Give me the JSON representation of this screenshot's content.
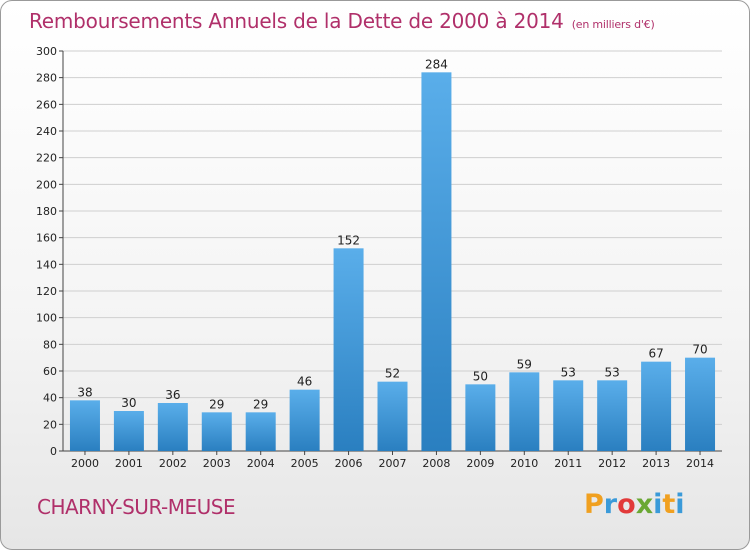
{
  "title": "Remboursements Annuels de la Dette de 2000 à 2014",
  "subtitle": "(en milliers d'€)",
  "commune": "CHARNY-SUR-MEUSE",
  "logo": {
    "letters": [
      "P",
      "r",
      "o",
      "x",
      "i",
      "t",
      "i"
    ],
    "colors": [
      "#f0a020",
      "#3a9ad9",
      "#e23a3a",
      "#6aa834",
      "#3a9ad9",
      "#f0a020",
      "#3a9ad9"
    ]
  },
  "colors": {
    "bar_light": "#5aaeea",
    "bar_dark": "#2a7fc0",
    "title": "#b0306a",
    "grid": "#cfcfcf"
  },
  "chart_data": {
    "type": "bar",
    "categories": [
      "2000",
      "2001",
      "2002",
      "2003",
      "2004",
      "2005",
      "2006",
      "2007",
      "2008",
      "2009",
      "2010",
      "2011",
      "2012",
      "2013",
      "2014"
    ],
    "values": [
      38,
      30,
      36,
      29,
      29,
      46,
      152,
      52,
      284,
      50,
      59,
      53,
      53,
      67,
      70
    ],
    "ylim": [
      0,
      300
    ],
    "yticks": [
      0,
      20,
      40,
      60,
      80,
      100,
      120,
      140,
      160,
      180,
      200,
      220,
      240,
      260,
      280,
      300
    ],
    "grid": true
  }
}
